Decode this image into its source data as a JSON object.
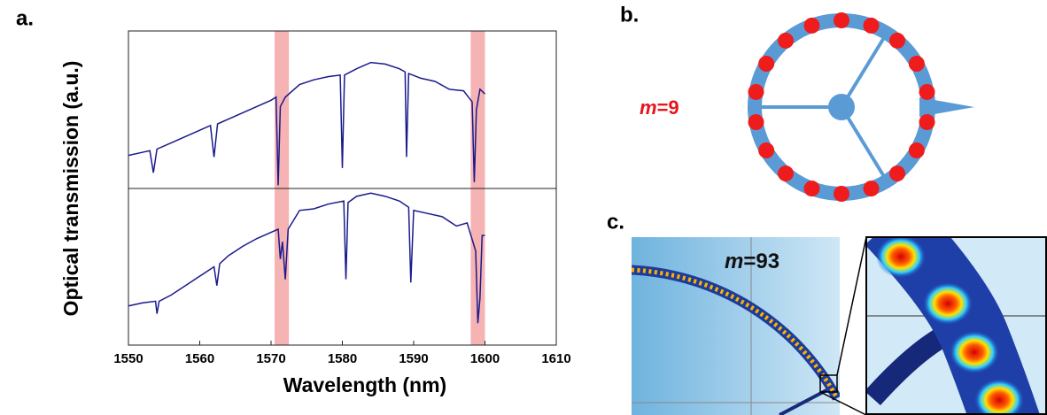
{
  "figure": {
    "panel_labels": [
      "a.",
      "b.",
      "c."
    ],
    "xlabel": "Wavelength (nm)",
    "ylabel": "Optical transmission (a.u.)",
    "highlight_bands": [
      [
        1570.5,
        1572.5
      ],
      [
        1598,
        1600
      ]
    ],
    "highlight_color": "#f4a6a6",
    "ring_label": "m=9",
    "sim_label": "m=93"
  },
  "chart_data": [
    {
      "type": "line",
      "xlim": [
        1550,
        1610
      ],
      "ylim": [
        0,
        1
      ],
      "x": [
        1550,
        1552,
        1553,
        1553.5,
        1554,
        1556,
        1558,
        1560,
        1561.5,
        1562,
        1562.5,
        1564,
        1566,
        1568,
        1570,
        1570.7,
        1571,
        1571.3,
        1572,
        1574,
        1576,
        1578,
        1579.7,
        1580,
        1580.3,
        1582,
        1584,
        1586,
        1588,
        1588.8,
        1589,
        1589.3,
        1591,
        1593,
        1595,
        1597,
        1598.2,
        1598.5,
        1598.8,
        1599.3,
        1600
      ],
      "series": [
        {
          "color": "#1a1a8c",
          "values": [
            0.21,
            0.23,
            0.24,
            0.1,
            0.25,
            0.29,
            0.33,
            0.37,
            0.4,
            0.2,
            0.41,
            0.44,
            0.48,
            0.52,
            0.56,
            0.58,
            0.02,
            0.52,
            0.58,
            0.66,
            0.69,
            0.71,
            0.72,
            0.13,
            0.72,
            0.76,
            0.8,
            0.79,
            0.76,
            0.74,
            0.2,
            0.73,
            0.7,
            0.68,
            0.63,
            0.62,
            0.55,
            0.04,
            0.5,
            0.63,
            0.6
          ]
        }
      ]
    },
    {
      "type": "line",
      "xlim": [
        1550,
        1610
      ],
      "ylim": [
        0,
        1
      ],
      "xticks": [
        1550,
        1560,
        1570,
        1580,
        1590,
        1600,
        1610
      ],
      "x": [
        1550,
        1552,
        1553.8,
        1554,
        1554.3,
        1556,
        1558,
        1560,
        1562,
        1562.4,
        1562.8,
        1564,
        1566,
        1568,
        1570,
        1571,
        1571.3,
        1571.6,
        1572,
        1572.4,
        1574,
        1576,
        1578,
        1580.2,
        1580.5,
        1580.8,
        1582,
        1584,
        1586,
        1588,
        1589.3,
        1589.6,
        1590,
        1592,
        1594,
        1596,
        1597.5,
        1598.7,
        1599,
        1599.3,
        1599.6,
        1600
      ],
      "series": [
        {
          "color": "#1a1a8c",
          "values": [
            0.25,
            0.27,
            0.28,
            0.2,
            0.28,
            0.32,
            0.38,
            0.44,
            0.5,
            0.38,
            0.52,
            0.57,
            0.63,
            0.68,
            0.72,
            0.74,
            0.55,
            0.66,
            0.42,
            0.74,
            0.86,
            0.87,
            0.9,
            0.92,
            0.42,
            0.91,
            0.95,
            0.97,
            0.95,
            0.92,
            0.88,
            0.4,
            0.86,
            0.84,
            0.82,
            0.76,
            0.78,
            0.6,
            0.14,
            0.3,
            0.7,
            0.7
          ]
        }
      ]
    }
  ]
}
